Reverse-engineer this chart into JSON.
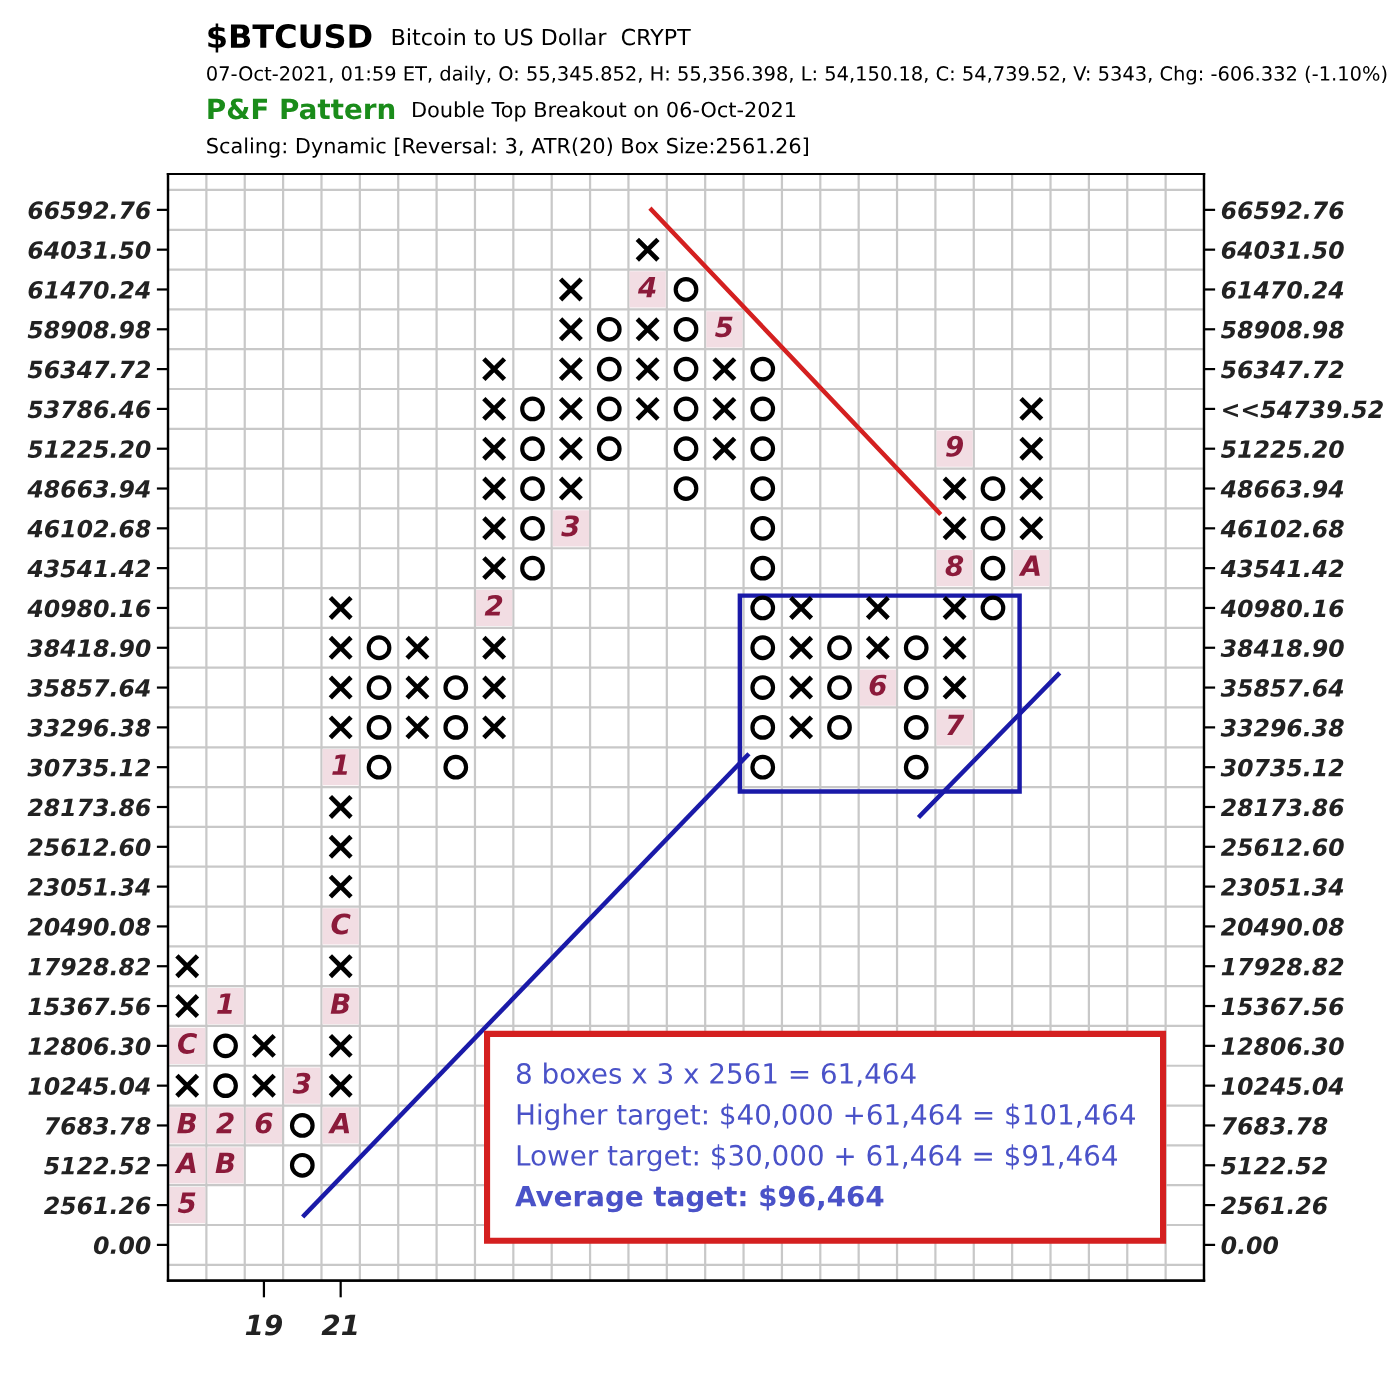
{
  "chart_data": {
    "type": "scatter",
    "title": "$BTCUSD",
    "subtitle": "Bitcoin to US Dollar  CRYPT",
    "annotations": [
      "07-Oct-2021, 01:59 ET, daily, O: 55,345.852, H: 55,356.398, L: 54,150.18, C: 54,739.52, V: 5343, Chg: -606.332 (-1.10%)",
      "P&F Pattern",
      "Double Top Breakout on 06-Oct-2021",
      "Scaling: Dynamic [Reversal: 3, ATR(20) Box Size:2561.26]",
      "8 boxes x 3 x 2561 = 61,464",
      "Higher target: $40,000 +61,464 = $101,464",
      "Lower target: $30,000 + 61,464 = $91,464",
      "Average taget: $96,464",
      {
        "text": "5",
        "x": 17,
        "y": 2561.26
      },
      {
        "text": "A",
        "x": 17,
        "y": 5122.52
      },
      {
        "text": "B",
        "x": 17,
        "y": 7683.78
      },
      {
        "text": "C",
        "x": 17,
        "y": 12806.3
      },
      {
        "text": "1",
        "x": 18,
        "y": 15367.56
      },
      {
        "text": "2",
        "x": 18,
        "y": 7683.78
      },
      {
        "text": "B",
        "x": 18,
        "y": 5122.52
      },
      {
        "text": "6",
        "x": 19,
        "y": 7683.78
      },
      {
        "text": "3",
        "x": 20,
        "y": 10245.04
      },
      {
        "text": "A",
        "x": 21,
        "y": 7683.78
      },
      {
        "text": "B",
        "x": 21,
        "y": 15367.56
      },
      {
        "text": "C",
        "x": 21,
        "y": 20490.08
      },
      {
        "text": "1",
        "x": 21,
        "y": 30735.12
      },
      {
        "text": "2",
        "x": 25,
        "y": 40980.16
      },
      {
        "text": "3",
        "x": 27,
        "y": 46102.68
      },
      {
        "text": "4",
        "x": 29,
        "y": 61470.24
      },
      {
        "text": "5",
        "x": 31,
        "y": 58908.98
      },
      {
        "text": "6",
        "x": 35,
        "y": 35857.64
      },
      {
        "text": "7",
        "x": 37,
        "y": 33296.38
      },
      {
        "text": "8",
        "x": 37,
        "y": 43541.42
      },
      {
        "text": "9",
        "x": 37,
        "y": 51225.2
      },
      {
        "text": "A",
        "x": 39,
        "y": 43541.42
      }
    ],
    "xlim": [
      16.5,
      43.5
    ],
    "xticks": [
      19,
      21
    ],
    "ylim": [
      -2300,
      68900
    ],
    "yticks": [
      {
        "value": 0,
        "label": "0.00"
      },
      2561.26,
      5122.52,
      7683.78,
      10245.04,
      {
        "value": 12806.3,
        "label": "12806.30"
      },
      15367.56,
      17928.82,
      20490.08,
      23051.34,
      {
        "value": 25612.6,
        "label": "25612.60"
      },
      28173.86,
      30735.12,
      33296.38,
      35857.64,
      {
        "value": 38418.9,
        "label": "38418.90"
      },
      40980.16,
      43541.42,
      46102.68,
      48663.94,
      {
        "value": 51225.2,
        "label": "51225.20"
      },
      53786.46,
      56347.72,
      58908.98,
      61470.24,
      {
        "value": 64031.5,
        "label": "64031.50"
      },
      66592.76
    ],
    "y2lim": [
      -2300,
      68900
    ],
    "y2ticks": [
      {
        "value": 0,
        "label": "0.00"
      },
      2561.26,
      5122.52,
      7683.78,
      10245.04,
      {
        "value": 12806.3,
        "label": "12806.30"
      },
      15367.56,
      17928.82,
      20490.08,
      23051.34,
      {
        "value": 25612.6,
        "label": "25612.60"
      },
      28173.86,
      30735.12,
      33296.38,
      35857.64,
      {
        "value": 38418.9,
        "label": "38418.90"
      },
      40980.16,
      43541.42,
      46102.68,
      48663.94,
      {
        "value": 51225.2,
        "label": "51225.20"
      },
      {
        "value": 53786.46,
        "label": "<<54739.52"
      },
      56347.72,
      58908.98,
      61470.24,
      {
        "value": 64031.5,
        "label": "64031.50"
      },
      66592.76
    ],
    "grid": true,
    "series": [
      {
        "marker": "cross",
        "color": "#000000",
        "x": [
          17,
          17,
          17,
          19,
          19,
          21,
          21,
          21,
          21,
          21,
          21,
          21,
          21,
          21,
          21,
          23,
          23,
          23,
          25,
          25,
          25,
          25,
          25,
          25,
          25,
          25,
          25,
          27,
          27,
          27,
          27,
          27,
          27,
          29,
          29,
          29,
          29,
          31,
          31,
          31,
          33,
          33,
          33,
          33,
          35,
          35,
          37,
          37,
          37,
          37,
          37,
          39,
          39,
          39,
          39
        ],
        "values": [
          10245.04,
          15367.56,
          17928.82,
          10245.04,
          12806.3,
          10245.04,
          12806.3,
          17928.82,
          23051.34,
          25612.6,
          28173.86,
          33296.38,
          35857.64,
          38418.9,
          40980.16,
          33296.38,
          35857.64,
          38418.9,
          33296.38,
          35857.64,
          38418.9,
          43541.42,
          46102.68,
          48663.94,
          51225.2,
          53786.46,
          56347.72,
          48663.94,
          51225.2,
          53786.46,
          56347.72,
          58908.98,
          61470.24,
          53786.46,
          56347.72,
          58908.98,
          64031.5,
          51225.2,
          53786.46,
          56347.72,
          33296.38,
          35857.64,
          38418.9,
          40980.16,
          38418.9,
          40980.16,
          35857.64,
          38418.9,
          40980.16,
          46102.68,
          48663.94,
          46102.68,
          48663.94,
          51225.2,
          53786.46
        ]
      },
      {
        "marker": "circle",
        "color": "#000000",
        "x": [
          18,
          18,
          20,
          20,
          22,
          22,
          22,
          22,
          24,
          24,
          24,
          26,
          26,
          26,
          26,
          26,
          28,
          28,
          28,
          28,
          30,
          30,
          30,
          30,
          30,
          30,
          32,
          32,
          32,
          32,
          32,
          32,
          32,
          32,
          32,
          32,
          32,
          34,
          34,
          34,
          36,
          36,
          36,
          36,
          38,
          38,
          38,
          38
        ],
        "values": [
          10245.04,
          12806.3,
          5122.52,
          7683.78,
          30735.12,
          33296.38,
          35857.64,
          38418.9,
          30735.12,
          33296.38,
          35857.64,
          43541.42,
          46102.68,
          48663.94,
          51225.2,
          53786.46,
          51225.2,
          53786.46,
          56347.72,
          58908.98,
          48663.94,
          51225.2,
          53786.46,
          56347.72,
          58908.98,
          61470.24,
          30735.12,
          33296.38,
          35857.64,
          38418.9,
          40980.16,
          43541.42,
          46102.68,
          48663.94,
          51225.2,
          53786.46,
          56347.72,
          33296.38,
          35857.64,
          38418.9,
          30735.12,
          33296.38,
          35857.64,
          38418.9,
          40980.16,
          43541.42,
          46102.68,
          48663.94
        ]
      },
      {
        "color": "#f2dde3",
        "marker": "square",
        "x": [
          17,
          17,
          17,
          17,
          18,
          18,
          18,
          19,
          20,
          21,
          21,
          21,
          21,
          25,
          27,
          29,
          31,
          35,
          37,
          37,
          37,
          39
        ],
        "values": [
          2561.26,
          5122.52,
          7683.78,
          12806.3,
          15367.56,
          7683.78,
          5122.52,
          7683.78,
          10245.04,
          7683.78,
          15367.56,
          20490.08,
          30735.12,
          40980.16,
          46102.68,
          61470.24,
          58908.98,
          35857.64,
          33296.38,
          43541.42,
          51225.2,
          43541.42
        ]
      },
      {
        "type": "line",
        "color": "#d42020",
        "x": [
          29.1,
          36.6
        ],
        "values": [
          66600,
          47100
        ]
      },
      {
        "type": "line",
        "color": "#1a1aa8",
        "x": [
          20.05,
          31.6
        ],
        "values": [
          1900,
          31500
        ]
      },
      {
        "type": "line",
        "color": "#1a1aa8",
        "x": [
          36.1,
          39.7
        ],
        "values": [
          27600,
          36700
        ]
      }
    ]
  }
}
